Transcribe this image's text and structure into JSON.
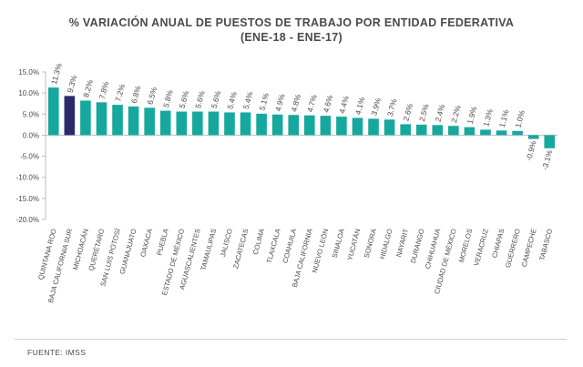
{
  "chart_data": {
    "type": "bar",
    "title": "% VARIACIÓN ANUAL DE PUESTOS DE TRABAJO POR ENTIDAD FEDERATIVA",
    "subtitle": "(ENE-18 - ENE-17)",
    "categories": [
      "QUINTANA ROO",
      "BAJA CALIFORNIA SUR",
      "MICHOACÁN",
      "QUERÉTARO",
      "SAN LUIS POTOSÍ",
      "GUANAJUATO",
      "OAXACA",
      "PUEBLA",
      "ESTADO DE MÉXICO",
      "AGUASCALIENTES",
      "TAMAULIPAS",
      "JALISCO",
      "ZACATECAS",
      "COLIMA",
      "TLAXCALA",
      "COAHUILA",
      "BAJA CALIFORNIA",
      "NUEVO LEÓN",
      "SINALOA",
      "YUCATÁN",
      "SONORA",
      "HIDALGO",
      "NAYARIT",
      "DURANGO",
      "CHIHUAHUA",
      "CIUDAD DE MÉXICO",
      "MORELOS",
      "VERACRUZ",
      "CHIAPAS",
      "GUERRERO",
      "CAMPECHE",
      "TABASCO"
    ],
    "values": [
      11.3,
      9.3,
      8.2,
      7.8,
      7.2,
      6.8,
      6.5,
      5.8,
      5.6,
      5.6,
      5.6,
      5.4,
      5.4,
      5.1,
      4.9,
      4.8,
      4.7,
      4.6,
      4.4,
      4.1,
      3.9,
      3.7,
      2.6,
      2.5,
      2.4,
      2.2,
      1.9,
      1.3,
      1.1,
      1.0,
      -0.9,
      -3.1
    ],
    "value_labels": [
      "11.3%",
      "9.3%",
      "8.2%",
      "7.8%",
      "7.2%",
      "6.8%",
      "6.5%",
      "5.8%",
      "5.6%",
      "5.6%",
      "5.6%",
      "5.4%",
      "5.4%",
      "5.1%",
      "4.9%",
      "4.8%",
      "4.7%",
      "4.6%",
      "4.4%",
      "4.1%",
      "3.9%",
      "3.7%",
      "2.6%",
      "2.5%",
      "2.4%",
      "2.2%",
      "1.9%",
      "1.3%",
      "1.1%",
      "1.0%",
      "-0.9%",
      "-3.1%"
    ],
    "highlight_index": 1,
    "ylim": [
      -20,
      15
    ],
    "yticks": [
      15,
      10,
      5,
      0,
      -5,
      -10,
      -15,
      -20
    ],
    "ytick_labels": [
      "15.0%",
      "10.0%",
      "5.0%",
      "0.0%",
      "-5.0%",
      "-10.0%",
      "-15.0%",
      "-20.0%"
    ],
    "grid": false,
    "colors": {
      "bar": "#16a89e",
      "highlight": "#2a2a6b",
      "text": "#4a4a4a",
      "axis": "#bdbdbd"
    }
  },
  "footer": {
    "source": "FUENTE: IMSS"
  }
}
